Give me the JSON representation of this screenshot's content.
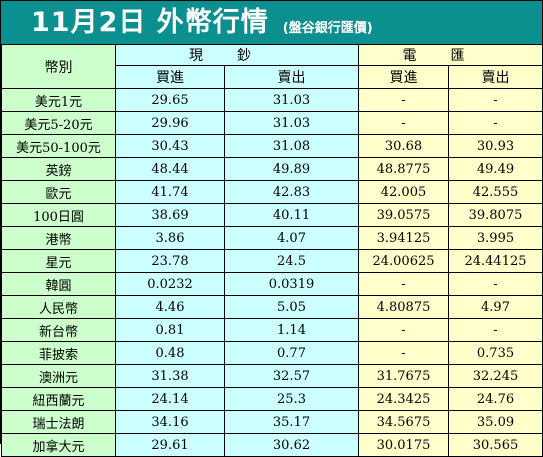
{
  "header": {
    "title": "11月2日 外幣行情",
    "subtitle": "(盤谷銀行匯價)"
  },
  "table": {
    "currency_header": "幣別",
    "cash_group": "現鈔",
    "remit_group": "電匯",
    "buy_label": "買進",
    "sell_label": "賣出",
    "rows": [
      {
        "currency": "美元1元",
        "cash_buy": "29.65",
        "cash_sell": "31.03",
        "remit_buy": "-",
        "remit_sell": "-"
      },
      {
        "currency": "美元5-20元",
        "cash_buy": "29.96",
        "cash_sell": "31.03",
        "remit_buy": "-",
        "remit_sell": "-"
      },
      {
        "currency": "美元50-100元",
        "cash_buy": "30.43",
        "cash_sell": "31.08",
        "remit_buy": "30.68",
        "remit_sell": "30.93"
      },
      {
        "currency": "英鎊",
        "cash_buy": "48.44",
        "cash_sell": "49.89",
        "remit_buy": "48.8775",
        "remit_sell": "49.49"
      },
      {
        "currency": "歐元",
        "cash_buy": "41.74",
        "cash_sell": "42.83",
        "remit_buy": "42.005",
        "remit_sell": "42.555"
      },
      {
        "currency": "100日圓",
        "cash_buy": "38.69",
        "cash_sell": "40.11",
        "remit_buy": "39.0575",
        "remit_sell": "39.8075"
      },
      {
        "currency": "港幣",
        "cash_buy": "3.86",
        "cash_sell": "4.07",
        "remit_buy": "3.94125",
        "remit_sell": "3.995"
      },
      {
        "currency": "星元",
        "cash_buy": "23.78",
        "cash_sell": "24.5",
        "remit_buy": "24.00625",
        "remit_sell": "24.44125"
      },
      {
        "currency": "韓圓",
        "cash_buy": "0.0232",
        "cash_sell": "0.0319",
        "remit_buy": "-",
        "remit_sell": "-"
      },
      {
        "currency": "人民幣",
        "cash_buy": "4.46",
        "cash_sell": "5.05",
        "remit_buy": "4.80875",
        "remit_sell": "4.97"
      },
      {
        "currency": "新台幣",
        "cash_buy": "0.81",
        "cash_sell": "1.14",
        "remit_buy": "-",
        "remit_sell": "-"
      },
      {
        "currency": "菲披索",
        "cash_buy": "0.48",
        "cash_sell": "0.77",
        "remit_buy": "-",
        "remit_sell": "0.735"
      },
      {
        "currency": "澳洲元",
        "cash_buy": "31.38",
        "cash_sell": "32.57",
        "remit_buy": "31.7675",
        "remit_sell": "32.245"
      },
      {
        "currency": "紐西蘭元",
        "cash_buy": "24.14",
        "cash_sell": "25.3",
        "remit_buy": "24.3425",
        "remit_sell": "24.76"
      },
      {
        "currency": "瑞士法朗",
        "cash_buy": "34.16",
        "cash_sell": "35.17",
        "remit_buy": "34.5675",
        "remit_sell": "35.09"
      },
      {
        "currency": "加拿大元",
        "cash_buy": "29.61",
        "cash_sell": "30.62",
        "remit_buy": "30.0175",
        "remit_sell": "30.565"
      }
    ]
  },
  "colors": {
    "header_bg": "#0b8f8f",
    "currency_bg": "#ccffcc",
    "cash_bg": "#ccffff",
    "remit_bg": "#ffffcc"
  }
}
